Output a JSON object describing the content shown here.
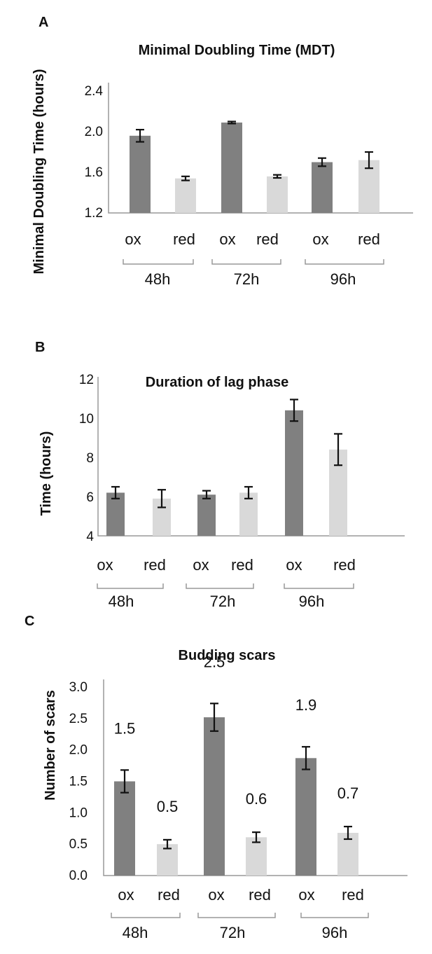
{
  "chart_data": [
    {
      "panel_label": "A",
      "type": "bar",
      "title": "Minimal Doubling Time (MDT)",
      "ylabel": "Minimal Doubling Time (hours)",
      "ylim": [
        1.2,
        2.4
      ],
      "yticks": [
        "1.2",
        "1.6",
        "2.0",
        "2.4"
      ],
      "categories": [
        "ox",
        "red",
        "ox",
        "red",
        "ox",
        "red"
      ],
      "groups": [
        "48h",
        "72h",
        "96h"
      ],
      "values": [
        1.96,
        1.54,
        2.09,
        1.56,
        1.7,
        1.72
      ],
      "errors": [
        0.06,
        0.02,
        0.01,
        0.015,
        0.04,
        0.08
      ],
      "colors": [
        "#808080",
        "#d9d9d9",
        "#808080",
        "#d9d9d9",
        "#808080",
        "#d9d9d9"
      ],
      "data_labels": [],
      "grid": false
    },
    {
      "panel_label": "B",
      "type": "bar",
      "title": "Duration of lag phase",
      "ylabel": "Time (hours)",
      "ylim": [
        4,
        12
      ],
      "yticks": [
        "4",
        "6",
        "8",
        "10",
        "12"
      ],
      "categories": [
        "ox",
        "red",
        "ox",
        "red",
        "ox",
        "red"
      ],
      "groups": [
        "48h",
        "72h",
        "96h"
      ],
      "values": [
        6.2,
        5.9,
        6.1,
        6.2,
        10.4,
        8.4
      ],
      "errors": [
        0.3,
        0.45,
        0.2,
        0.3,
        0.55,
        0.8
      ],
      "colors": [
        "#808080",
        "#d9d9d9",
        "#808080",
        "#d9d9d9",
        "#808080",
        "#d9d9d9"
      ],
      "data_labels": [],
      "grid": false
    },
    {
      "panel_label": "C",
      "type": "bar",
      "title": "Budding scars",
      "ylabel": "Number of scars",
      "ylim": [
        0.0,
        3.0
      ],
      "yticks": [
        "0.0",
        "0.5",
        "1.0",
        "1.5",
        "2.0",
        "2.5",
        "3.0"
      ],
      "categories": [
        "ox",
        "red",
        "ox",
        "red",
        "ox",
        "red"
      ],
      "groups": [
        "48h",
        "72h",
        "96h"
      ],
      "values": [
        1.5,
        0.5,
        2.52,
        0.61,
        1.87,
        0.68
      ],
      "errors": [
        0.18,
        0.07,
        0.22,
        0.08,
        0.18,
        0.1
      ],
      "colors": [
        "#808080",
        "#d9d9d9",
        "#808080",
        "#d9d9d9",
        "#808080",
        "#d9d9d9"
      ],
      "data_labels": [
        "1.5",
        "0.5",
        "2.5",
        "0.6",
        "1.9",
        "0.7"
      ],
      "grid": false
    }
  ]
}
